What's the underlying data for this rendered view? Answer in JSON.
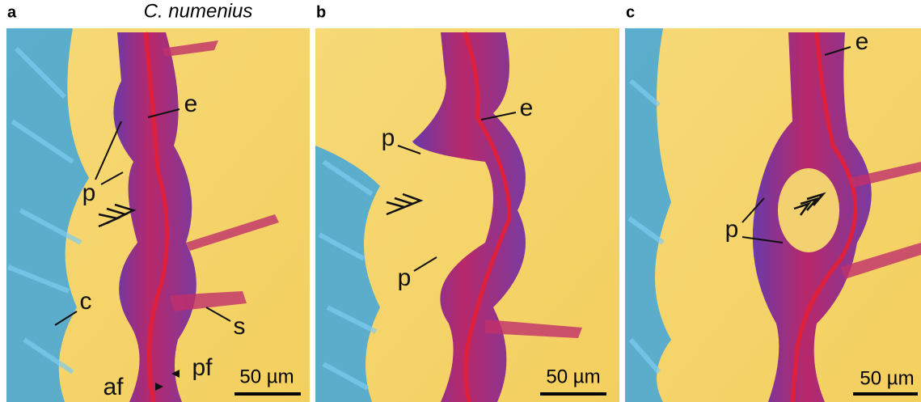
{
  "panels": [
    {
      "letter": "a",
      "title": "C. numenius",
      "labels": {
        "e": "e",
        "p": "p",
        "c": "c",
        "s": "s",
        "af": "af",
        "pf": "pf"
      },
      "scale_bar": "50 µm"
    },
    {
      "letter": "b",
      "labels": {
        "e": "e",
        "p_upper": "p",
        "p_lower": "p"
      },
      "scale_bar": "50 µm"
    },
    {
      "letter": "c",
      "labels": {
        "e": "e",
        "p": "p"
      },
      "scale_bar": "50 µm"
    }
  ]
}
